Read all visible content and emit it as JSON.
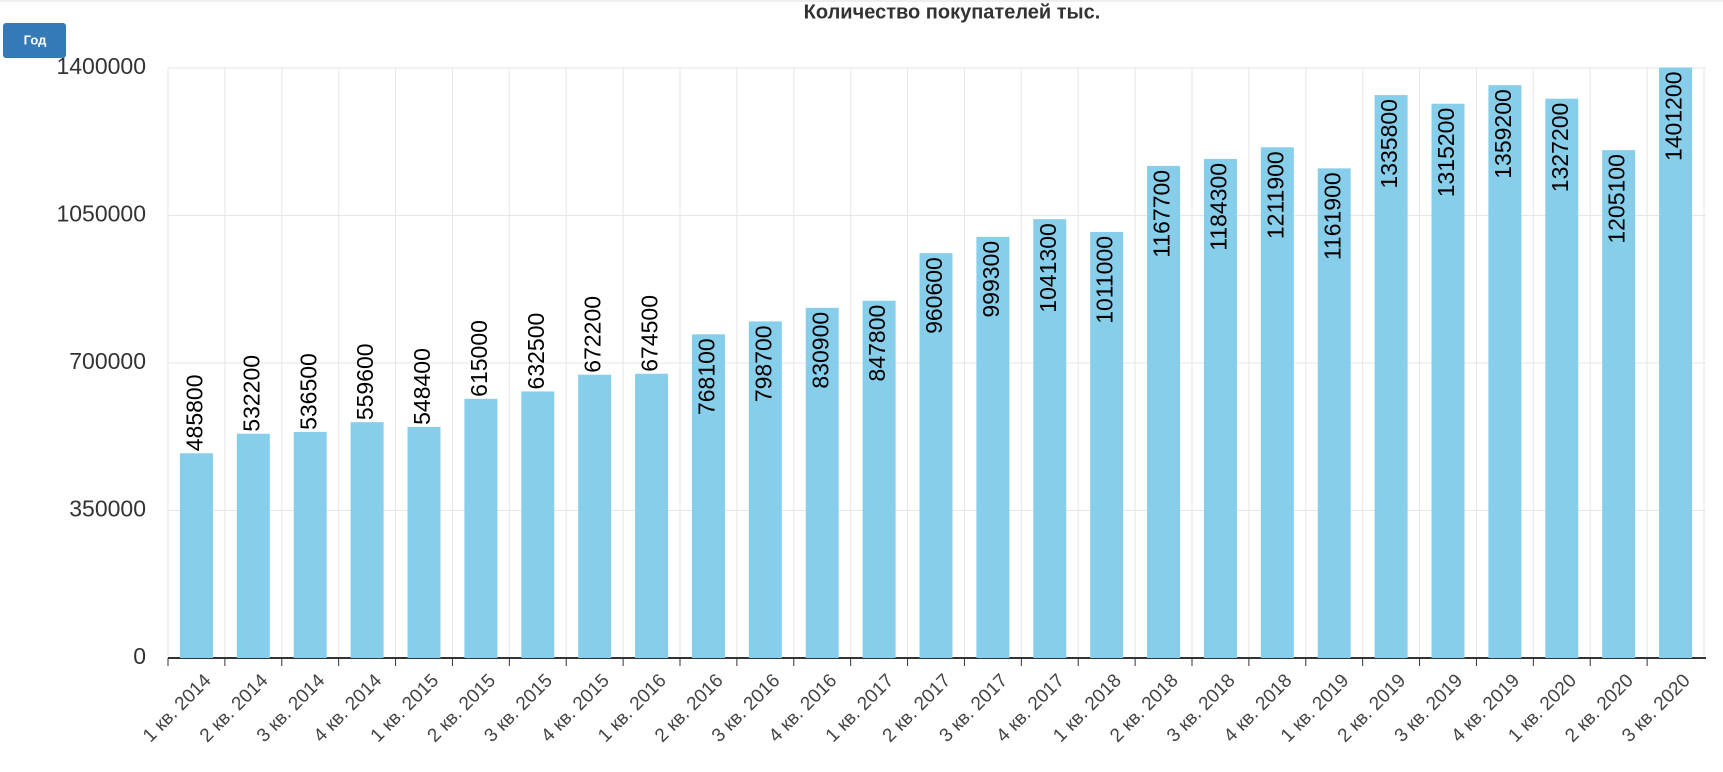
{
  "button": "Год",
  "chart_data": {
    "type": "bar",
    "title": "Количество покупателей тыс.",
    "categories": [
      "1 кв. 2014",
      "2 кв. 2014",
      "3 кв. 2014",
      "4 кв. 2014",
      "1 кв. 2015",
      "2 кв. 2015",
      "3 кв. 2015",
      "4 кв. 2015",
      "1 кв. 2016",
      "2 кв. 2016",
      "3 кв. 2016",
      "4 кв. 2016",
      "1 кв. 2017",
      "2 кв. 2017",
      "3 кв. 2017",
      "4 кв. 2017",
      "1 кв. 2018",
      "2 кв. 2018",
      "3 кв. 2018",
      "4 кв. 2018",
      "1 кв. 2019",
      "2 кв. 2019",
      "3 кв. 2019",
      "4 кв. 2019",
      "1 кв. 2020",
      "2 кв. 2020",
      "3 кв. 2020"
    ],
    "values": [
      485800,
      532200,
      536500,
      559600,
      548400,
      615000,
      632500,
      672200,
      674500,
      768100,
      798700,
      830900,
      847800,
      960600,
      999300,
      1041300,
      1011000,
      1167700,
      1184300,
      1211900,
      1161900,
      1335800,
      1315200,
      1359200,
      1327200,
      1205100,
      1401200
    ],
    "color": "#87ceeb",
    "ylim": [
      0,
      1400000
    ],
    "yticks": [
      0,
      350000,
      700000,
      1050000,
      1400000
    ],
    "grid": true
  }
}
